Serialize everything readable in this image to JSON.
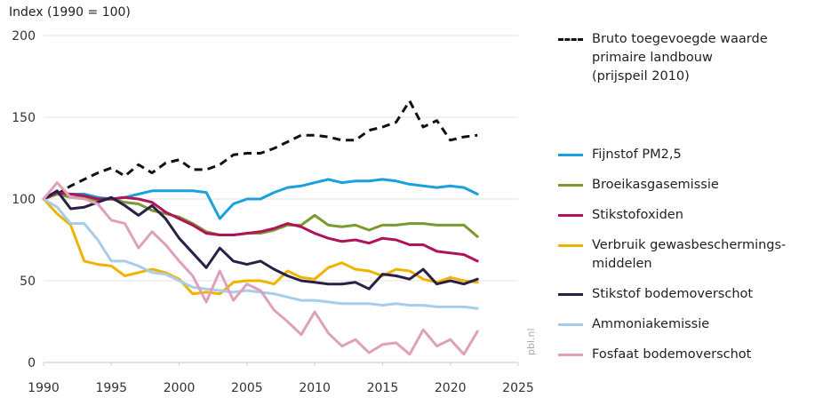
{
  "chart_data": {
    "type": "line",
    "ylabel": "Index (1990 = 100)",
    "xlim": [
      1990,
      2025
    ],
    "ylim": [
      0,
      200
    ],
    "x_ticks": [
      "1990",
      "1995",
      "2000",
      "2005",
      "2010",
      "2015",
      "2020",
      "2025"
    ],
    "y_ticks": [
      "0",
      "50",
      "100",
      "150",
      "200"
    ],
    "grid": true,
    "legend_position": "right",
    "series": [
      {
        "name": "Bruto toegevoegde waarde\nprimaire landbouw\n(prijspeil 2010)",
        "color": "#111111",
        "dashed": true,
        "x": [
          1990,
          1991,
          1992,
          1993,
          1994,
          1995,
          1996,
          1997,
          1998,
          1999,
          2000,
          2001,
          2002,
          2003,
          2004,
          2005,
          2006,
          2007,
          2008,
          2009,
          2010,
          2011,
          2012,
          2013,
          2014,
          2015,
          2016,
          2017,
          2018,
          2019,
          2020,
          2021,
          2022
        ],
        "y": [
          100,
          103,
          108,
          112,
          116,
          119,
          114,
          121,
          116,
          122,
          124,
          118,
          118,
          121,
          127,
          128,
          128,
          131,
          135,
          139,
          139,
          138,
          136,
          136,
          142,
          144,
          147,
          160,
          144,
          148,
          136,
          138,
          139
        ]
      },
      {
        "name": "Fijnstof PM2,5",
        "color": "#1aa0dc",
        "dashed": false,
        "x": [
          1990,
          1991,
          1992,
          1993,
          1994,
          1995,
          1996,
          1997,
          1998,
          1999,
          2000,
          2001,
          2002,
          2003,
          2004,
          2005,
          2006,
          2007,
          2008,
          2009,
          2010,
          2011,
          2012,
          2013,
          2014,
          2015,
          2016,
          2017,
          2018,
          2019,
          2020,
          2021,
          2022
        ],
        "y": [
          100,
          103,
          103,
          103,
          101,
          100,
          101,
          103,
          105,
          105,
          105,
          105,
          104,
          88,
          97,
          100,
          100,
          104,
          107,
          108,
          110,
          112,
          110,
          111,
          111,
          112,
          111,
          109,
          108,
          107,
          108,
          107,
          103
        ]
      },
      {
        "name": "Broeikasgasemissie",
        "color": "#7a9a2e",
        "dashed": false,
        "x": [
          1990,
          1991,
          1992,
          1993,
          1994,
          1995,
          1996,
          1997,
          1998,
          1999,
          2000,
          2001,
          2002,
          2003,
          2004,
          2005,
          2006,
          2007,
          2008,
          2009,
          2010,
          2011,
          2012,
          2013,
          2014,
          2015,
          2016,
          2017,
          2018,
          2019,
          2020,
          2021,
          2022
        ],
        "y": [
          100,
          103,
          101,
          101,
          99,
          100,
          98,
          97,
          93,
          91,
          89,
          85,
          80,
          78,
          78,
          79,
          79,
          81,
          84,
          84,
          90,
          84,
          83,
          84,
          81,
          84,
          84,
          85,
          85,
          84,
          84,
          84,
          77
        ]
      },
      {
        "name": "Stikstofoxiden",
        "color": "#b0135a",
        "dashed": false,
        "x": [
          1990,
          1991,
          1992,
          1993,
          1994,
          1995,
          1996,
          1997,
          1998,
          1999,
          2000,
          2001,
          2002,
          2003,
          2004,
          2005,
          2006,
          2007,
          2008,
          2009,
          2010,
          2011,
          2012,
          2013,
          2014,
          2015,
          2016,
          2017,
          2018,
          2019,
          2020,
          2021,
          2022
        ],
        "y": [
          100,
          104,
          103,
          102,
          100,
          100,
          101,
          100,
          98,
          92,
          88,
          84,
          79,
          78,
          78,
          79,
          80,
          82,
          85,
          83,
          79,
          76,
          74,
          75,
          73,
          76,
          75,
          72,
          72,
          68,
          67,
          66,
          62
        ]
      },
      {
        "name": "Verbruik gewasbeschermings-\nmiddelen",
        "color": "#f0b400",
        "dashed": false,
        "x": [
          1990,
          1991,
          1992,
          1993,
          1994,
          1995,
          1996,
          1997,
          1998,
          1999,
          2000,
          2001,
          2002,
          2003,
          2004,
          2005,
          2006,
          2007,
          2008,
          2009,
          2010,
          2011,
          2012,
          2013,
          2014,
          2015,
          2016,
          2017,
          2018,
          2019,
          2020,
          2021,
          2022
        ],
        "y": [
          100,
          91,
          84,
          62,
          60,
          59,
          53,
          55,
          57,
          55,
          51,
          42,
          43,
          42,
          49,
          50,
          50,
          48,
          56,
          52,
          51,
          58,
          61,
          57,
          56,
          53,
          57,
          56,
          51,
          49,
          52,
          50,
          49
        ]
      },
      {
        "name": "Stikstof bodemoverschot",
        "color": "#2b1f45",
        "dashed": false,
        "x": [
          1990,
          1991,
          1992,
          1993,
          1994,
          1995,
          1996,
          1997,
          1998,
          1999,
          2000,
          2001,
          2002,
          2003,
          2004,
          2005,
          2006,
          2007,
          2008,
          2009,
          2010,
          2011,
          2012,
          2013,
          2014,
          2015,
          2016,
          2017,
          2018,
          2019,
          2020,
          2021,
          2022
        ],
        "y": [
          100,
          105,
          94,
          95,
          98,
          101,
          96,
          90,
          96,
          88,
          76,
          67,
          58,
          70,
          62,
          60,
          62,
          57,
          53,
          50,
          49,
          48,
          48,
          49,
          45,
          54,
          53,
          51,
          57,
          48,
          50,
          48,
          51
        ]
      },
      {
        "name": "Ammoniakemissie",
        "color": "#a8cdea",
        "dashed": false,
        "x": [
          1990,
          1991,
          1992,
          1993,
          1994,
          1995,
          1996,
          1997,
          1998,
          1999,
          2000,
          2001,
          2002,
          2003,
          2004,
          2005,
          2006,
          2007,
          2008,
          2009,
          2010,
          2011,
          2012,
          2013,
          2014,
          2015,
          2016,
          2017,
          2018,
          2019,
          2020,
          2021,
          2022
        ],
        "y": [
          100,
          95,
          85,
          85,
          75,
          62,
          62,
          59,
          55,
          54,
          50,
          46,
          45,
          44,
          43,
          44,
          43,
          42,
          40,
          38,
          38,
          37,
          36,
          36,
          36,
          35,
          36,
          35,
          35,
          34,
          34,
          34,
          33
        ]
      },
      {
        "name": "Fosfaat bodemoverschot",
        "color": "#e0a0bc",
        "dashed": false,
        "x": [
          1990,
          1991,
          1992,
          1993,
          1994,
          1995,
          1996,
          1997,
          1998,
          1999,
          2000,
          2001,
          2002,
          2003,
          2004,
          2005,
          2006,
          2007,
          2008,
          2009,
          2010,
          2011,
          2012,
          2013,
          2014,
          2015,
          2016,
          2017,
          2018,
          2019,
          2020,
          2021,
          2022
        ],
        "y": [
          100,
          110,
          101,
          100,
          97,
          87,
          85,
          70,
          80,
          72,
          62,
          53,
          37,
          56,
          38,
          48,
          44,
          32,
          25,
          17,
          31,
          18,
          10,
          14,
          6,
          11,
          12,
          5,
          20,
          10,
          14,
          5,
          19
        ]
      }
    ],
    "credit": "pbl.nl"
  }
}
